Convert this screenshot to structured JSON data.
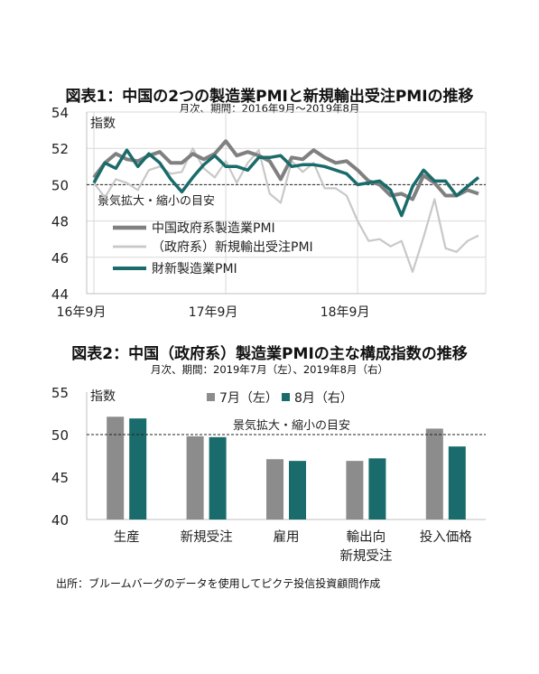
{
  "chart_data": [
    {
      "type": "line",
      "title": "図表1：中国の2つの製造業PMIと新規輸出受注PMIの推移",
      "subtitle": "月次、期間：2016年9月～2019年8月",
      "ylabel": "指数",
      "ylim": [
        44,
        54
      ],
      "yticks": [
        "44",
        "46",
        "48",
        "50",
        "52",
        "54"
      ],
      "xtick_labels": [
        "16年9月",
        "17年9月",
        "18年9月"
      ],
      "reference_label": "景気拡大・縮小の目安",
      "reference_value": 50,
      "grid": true,
      "legend_position": "center-left",
      "x": [
        "2016-09",
        "2016-10",
        "2016-11",
        "2016-12",
        "2017-01",
        "2017-02",
        "2017-03",
        "2017-04",
        "2017-05",
        "2017-06",
        "2017-07",
        "2017-08",
        "2017-09",
        "2017-10",
        "2017-11",
        "2017-12",
        "2018-01",
        "2018-02",
        "2018-03",
        "2018-04",
        "2018-05",
        "2018-06",
        "2018-07",
        "2018-08",
        "2018-09",
        "2018-10",
        "2018-11",
        "2018-12",
        "2019-01",
        "2019-02",
        "2019-03",
        "2019-04",
        "2019-05",
        "2019-06",
        "2019-07",
        "2019-08"
      ],
      "series": [
        {
          "name": "中国政府系製造業PMI",
          "color": "#808080",
          "values": [
            50.4,
            51.2,
            51.7,
            51.4,
            51.3,
            51.6,
            51.8,
            51.2,
            51.2,
            51.7,
            51.4,
            51.7,
            52.4,
            51.6,
            51.8,
            51.6,
            51.3,
            50.3,
            51.5,
            51.4,
            51.9,
            51.5,
            51.2,
            51.3,
            50.8,
            50.2,
            50.0,
            49.4,
            49.5,
            49.2,
            50.5,
            50.1,
            49.4,
            49.4,
            49.7,
            49.5
          ]
        },
        {
          "name": "（政府系）新規輸出受注PMI",
          "color": "#c8c8c8",
          "values": [
            50.1,
            49.3,
            50.3,
            50.1,
            49.7,
            50.8,
            51.0,
            50.6,
            50.7,
            52.0,
            50.9,
            50.4,
            51.3,
            50.1,
            51.2,
            51.9,
            49.5,
            49.0,
            51.3,
            50.7,
            51.2,
            49.8,
            49.8,
            49.4,
            48.0,
            46.9,
            47.0,
            46.6,
            46.9,
            45.2,
            47.1,
            49.2,
            46.5,
            46.3,
            46.9,
            47.2
          ]
        },
        {
          "name": "財新製造業PMI",
          "color": "#1a6b6b",
          "values": [
            50.1,
            51.2,
            50.9,
            51.9,
            51.0,
            51.7,
            51.2,
            50.3,
            49.6,
            50.4,
            51.1,
            51.6,
            51.0,
            51.0,
            50.8,
            51.5,
            51.5,
            51.6,
            51.0,
            51.1,
            51.1,
            51.0,
            50.8,
            50.6,
            50.0,
            50.1,
            50.2,
            49.7,
            48.3,
            49.9,
            50.8,
            50.2,
            50.2,
            49.4,
            49.9,
            50.4
          ]
        }
      ]
    },
    {
      "type": "bar",
      "title": "図表2：中国（政府系）製造業PMIの主な構成指数の推移",
      "subtitle": "月次、期間：2019年7月（左）、2019年8月（右）",
      "ylabel": "指数",
      "ylim": [
        40,
        55
      ],
      "yticks": [
        "40",
        "45",
        "50",
        "55"
      ],
      "categories": [
        "生産",
        "新規受注",
        "雇用",
        "輸出向\n新規受注",
        "投入価格"
      ],
      "reference_label": "景気拡大・縮小の目安",
      "reference_value": 50,
      "legend_position": "top",
      "series": [
        {
          "name": "7月（左）",
          "color": "#8c8c8c",
          "values": [
            52.1,
            49.8,
            47.1,
            46.9,
            50.7
          ]
        },
        {
          "name": "8月（右）",
          "color": "#1a6b6b",
          "values": [
            51.9,
            49.7,
            46.9,
            47.2,
            48.6
          ]
        }
      ]
    }
  ],
  "source": "出所：ブルームバーグのデータを使用してピクテ投信投資顧問作成"
}
